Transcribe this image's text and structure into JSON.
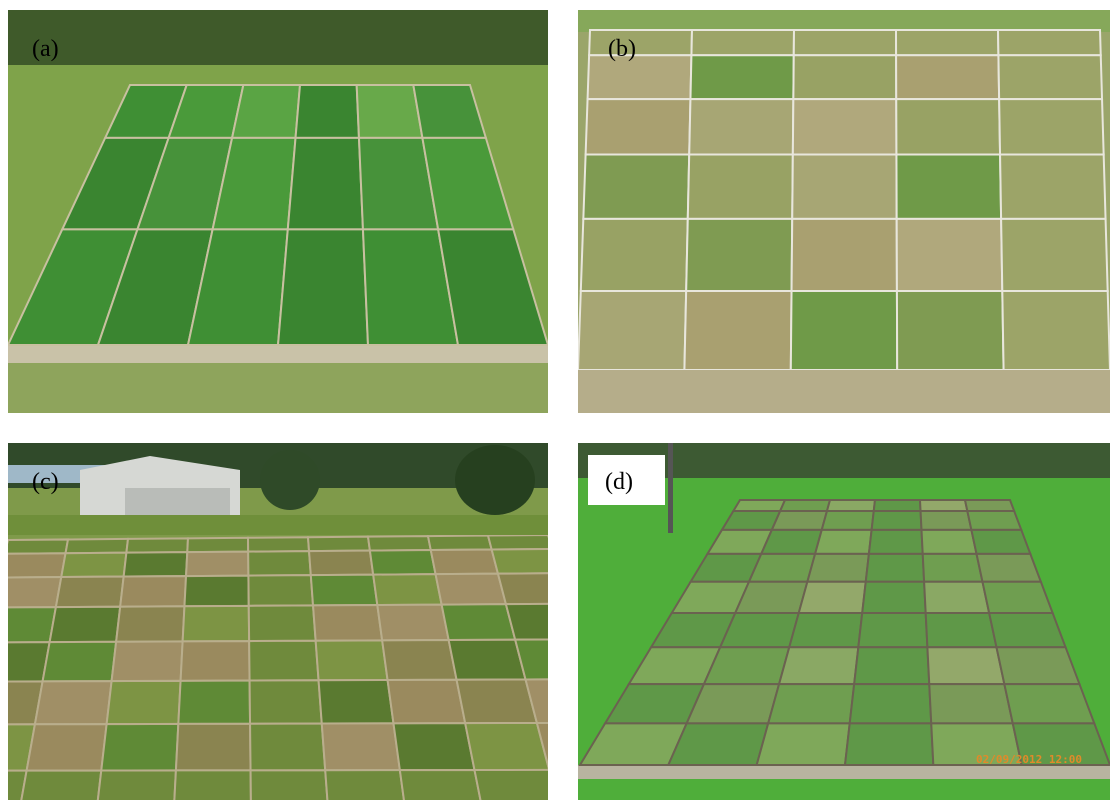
{
  "panels": [
    {
      "label": "(a)"
    },
    {
      "label": "(b)"
    },
    {
      "label": "(c)"
    },
    {
      "label": "(d)",
      "timestamp": "02/09/2012 12:00"
    }
  ]
}
